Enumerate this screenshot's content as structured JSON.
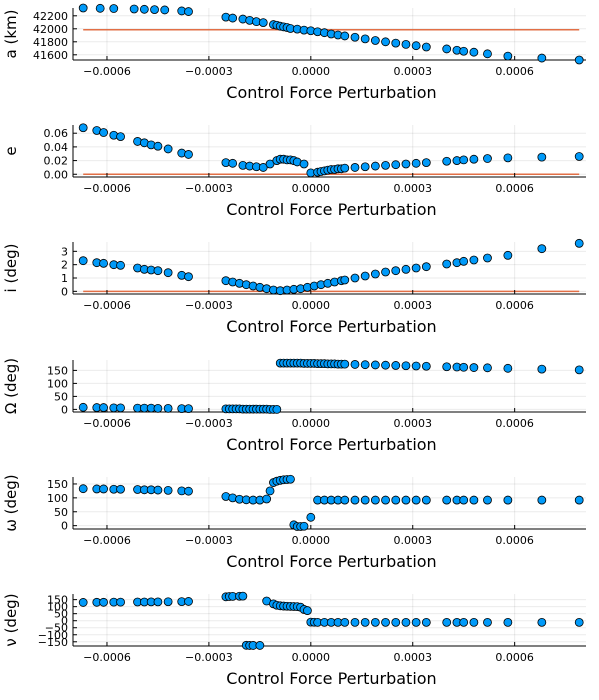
{
  "chart_data": [
    {
      "type": "scatter",
      "xlabel": "Control Force Perturbation",
      "ylabel": "a (km)",
      "xlim": [
        -0.0007,
        0.00081
      ],
      "xticks": [
        -0.0006,
        -0.0003,
        0.0,
        0.0003,
        0.0006
      ],
      "xticklabels": [
        "−0.0006",
        "−0.0003",
        "0.0000",
        "0.0003",
        "0.0006"
      ],
      "ylim": [
        41520,
        42320
      ],
      "yticks": [
        41600,
        41800,
        42000,
        42200
      ],
      "yticklabels": [
        "41600",
        "41800",
        "42000",
        "42200"
      ],
      "reference_line": 41985,
      "grid": true,
      "legend": "none",
      "x": [
        -0.00067,
        -0.00062,
        -0.00058,
        -0.00052,
        -0.00049,
        -0.00046,
        -0.00043,
        -0.00038,
        -0.00036,
        -0.00025,
        -0.00023,
        -0.0002,
        -0.00018,
        -0.00016,
        -0.00014,
        -0.00011,
        -0.0001,
        -9e-05,
        -8e-05,
        -7e-05,
        -6e-05,
        -4e-05,
        -2e-05,
        0.0,
        2e-05,
        4e-05,
        6e-05,
        8e-05,
        0.0001,
        0.00013,
        0.00016,
        0.00019,
        0.00022,
        0.00025,
        0.00028,
        0.00031,
        0.00034,
        0.0004,
        0.00043,
        0.00045,
        0.00048,
        0.00052,
        0.00058,
        0.00068,
        0.00079
      ],
      "y": [
        42320,
        42315,
        42312,
        42305,
        42300,
        42295,
        42290,
        42275,
        42265,
        42180,
        42165,
        42150,
        42130,
        42110,
        42095,
        42065,
        42055,
        42040,
        42030,
        42020,
        42005,
        41995,
        41980,
        41970,
        41955,
        41940,
        41920,
        41905,
        41890,
        41870,
        41845,
        41820,
        41800,
        41780,
        41760,
        41740,
        41720,
        41690,
        41670,
        41655,
        41640,
        41615,
        41580,
        41550,
        41520
      ]
    },
    {
      "type": "scatter",
      "xlabel": "Control Force Perturbation",
      "ylabel": "e",
      "xlim": [
        -0.0007,
        0.00081
      ],
      "xticks": [
        -0.0006,
        -0.0003,
        0.0,
        0.0003,
        0.0006
      ],
      "xticklabels": [
        "−0.0006",
        "−0.0003",
        "0.0000",
        "0.0003",
        "0.0006"
      ],
      "ylim": [
        -0.004,
        0.072
      ],
      "yticks": [
        0.0,
        0.02,
        0.04,
        0.06
      ],
      "yticklabels": [
        "0.00",
        "0.02",
        "0.04",
        "0.06"
      ],
      "reference_line": 0.0,
      "grid": true,
      "legend": "none",
      "x": [
        -0.00067,
        -0.00063,
        -0.00061,
        -0.00058,
        -0.00056,
        -0.00051,
        -0.00049,
        -0.00047,
        -0.00045,
        -0.00042,
        -0.00038,
        -0.00036,
        -0.00025,
        -0.00023,
        -0.0002,
        -0.00018,
        -0.00016,
        -0.00014,
        -0.00012,
        -0.0001,
        -9e-05,
        -8e-05,
        -7e-05,
        -6e-05,
        -5e-05,
        -4e-05,
        -2e-05,
        0.0,
        2e-05,
        3e-05,
        4e-05,
        5e-05,
        6e-05,
        7e-05,
        8e-05,
        9e-05,
        0.0001,
        0.00013,
        0.00016,
        0.00019,
        0.00022,
        0.00025,
        0.00028,
        0.00031,
        0.00034,
        0.0004,
        0.00043,
        0.00045,
        0.00048,
        0.00052,
        0.00058,
        0.00068,
        0.00079
      ],
      "y": [
        0.068,
        0.064,
        0.061,
        0.057,
        0.055,
        0.048,
        0.046,
        0.043,
        0.041,
        0.037,
        0.031,
        0.029,
        0.017,
        0.016,
        0.013,
        0.012,
        0.011,
        0.01,
        0.015,
        0.02,
        0.022,
        0.022,
        0.021,
        0.021,
        0.02,
        0.018,
        0.015,
        0.002,
        0.003,
        0.004,
        0.005,
        0.006,
        0.007,
        0.007,
        0.008,
        0.008,
        0.009,
        0.01,
        0.011,
        0.012,
        0.013,
        0.014,
        0.015,
        0.016,
        0.017,
        0.019,
        0.02,
        0.021,
        0.022,
        0.023,
        0.024,
        0.025,
        0.026
      ]
    },
    {
      "type": "scatter",
      "xlabel": "Control Force Perturbation",
      "ylabel": "i (deg)",
      "xlim": [
        -0.0007,
        0.00081
      ],
      "xticks": [
        -0.0006,
        -0.0003,
        0.0,
        0.0003,
        0.0006
      ],
      "xticklabels": [
        "−0.0006",
        "−0.0003",
        "0.0000",
        "0.0003",
        "0.0006"
      ],
      "ylim": [
        -0.2,
        3.7
      ],
      "yticks": [
        0,
        1,
        2,
        3
      ],
      "yticklabels": [
        "0",
        "1",
        "2",
        "3"
      ],
      "reference_line": 0.0,
      "grid": true,
      "legend": "none",
      "x": [
        -0.00067,
        -0.00063,
        -0.00061,
        -0.00058,
        -0.00056,
        -0.00051,
        -0.00049,
        -0.00047,
        -0.00045,
        -0.00042,
        -0.00038,
        -0.00036,
        -0.00025,
        -0.00023,
        -0.00021,
        -0.00019,
        -0.00017,
        -0.00015,
        -0.00013,
        -0.00011,
        -9e-05,
        -7e-05,
        -5e-05,
        -3e-05,
        -1e-05,
        1e-05,
        3e-05,
        5e-05,
        7e-05,
        9e-05,
        0.0001,
        0.00013,
        0.00016,
        0.00019,
        0.00022,
        0.00025,
        0.00028,
        0.00031,
        0.00034,
        0.0004,
        0.00043,
        0.00045,
        0.00048,
        0.00052,
        0.00058,
        0.00068,
        0.00079
      ],
      "y": [
        2.3,
        2.15,
        2.1,
        2.0,
        1.95,
        1.75,
        1.65,
        1.6,
        1.55,
        1.4,
        1.2,
        1.1,
        0.8,
        0.7,
        0.6,
        0.5,
        0.4,
        0.3,
        0.2,
        0.1,
        0.05,
        0.1,
        0.15,
        0.2,
        0.3,
        0.4,
        0.5,
        0.6,
        0.7,
        0.8,
        0.85,
        1.0,
        1.15,
        1.3,
        1.45,
        1.55,
        1.65,
        1.75,
        1.85,
        2.05,
        2.15,
        2.25,
        2.35,
        2.5,
        2.7,
        3.2,
        3.6
      ]
    },
    {
      "type": "scatter",
      "xlabel": "Control Force Perturbation",
      "ylabel": "Ω (deg)",
      "xlim": [
        -0.0007,
        0.00081
      ],
      "xticks": [
        -0.0006,
        -0.0003,
        0.0,
        0.0003,
        0.0006
      ],
      "xticklabels": [
        "−0.0006",
        "−0.0003",
        "0.0000",
        "0.0003",
        "0.0006"
      ],
      "ylim": [
        -10,
        190
      ],
      "yticks": [
        0,
        50,
        100,
        150
      ],
      "yticklabels": [
        "0",
        "50",
        "100",
        "150"
      ],
      "reference_line": null,
      "grid": true,
      "legend": "none",
      "x": [
        -0.00067,
        -0.00063,
        -0.00061,
        -0.00058,
        -0.00056,
        -0.00051,
        -0.00049,
        -0.00047,
        -0.00045,
        -0.00042,
        -0.00038,
        -0.00036,
        -0.00025,
        -0.00024,
        -0.00023,
        -0.00022,
        -0.00021,
        -0.0002,
        -0.00019,
        -0.00018,
        -0.00017,
        -0.00016,
        -0.00015,
        -0.00014,
        -0.00013,
        -0.00012,
        -0.00011,
        -0.0001,
        -9e-05,
        -8e-05,
        -7e-05,
        -6e-05,
        -5e-05,
        -4e-05,
        -3e-05,
        -2e-05,
        -1e-05,
        0.0,
        1e-05,
        2e-05,
        3e-05,
        4e-05,
        5e-05,
        6e-05,
        7e-05,
        8e-05,
        9e-05,
        0.0001,
        0.00013,
        0.00016,
        0.00019,
        0.00022,
        0.00025,
        0.00028,
        0.00031,
        0.00034,
        0.0004,
        0.00043,
        0.00045,
        0.00048,
        0.00052,
        0.00058,
        0.00068,
        0.00079
      ],
      "y": [
        8,
        7,
        7,
        6,
        6,
        5,
        5,
        5,
        4,
        4,
        3,
        3,
        2,
        2,
        2,
        2,
        2,
        1,
        1,
        1,
        1,
        1,
        1,
        1,
        1,
        0,
        0,
        0,
        178,
        178,
        178,
        178,
        178,
        178,
        178,
        177,
        177,
        177,
        177,
        176,
        176,
        176,
        175,
        175,
        175,
        174,
        174,
        174,
        173,
        172,
        171,
        170,
        169,
        168,
        167,
        166,
        164,
        163,
        162,
        161,
        160,
        158,
        155,
        152
      ]
    },
    {
      "type": "scatter",
      "xlabel": "Control Force Perturbation",
      "ylabel": "ω (deg)",
      "xlim": [
        -0.0007,
        0.00081
      ],
      "xticks": [
        -0.0006,
        -0.0003,
        0.0,
        0.0003,
        0.0006
      ],
      "xticklabels": [
        "−0.0006",
        "−0.0003",
        "0.0000",
        "0.0003",
        "0.0006"
      ],
      "ylim": [
        -12,
        175
      ],
      "yticks": [
        0,
        50,
        100,
        150
      ],
      "yticklabels": [
        "0",
        "50",
        "100",
        "150"
      ],
      "reference_line": null,
      "grid": true,
      "legend": "none",
      "x": [
        -0.00067,
        -0.00063,
        -0.00061,
        -0.00058,
        -0.00056,
        -0.00051,
        -0.00049,
        -0.00047,
        -0.00045,
        -0.00042,
        -0.00038,
        -0.00036,
        -0.00025,
        -0.00023,
        -0.00021,
        -0.00019,
        -0.00017,
        -0.00015,
        -0.00013,
        -0.00012,
        -0.00011,
        -0.0001,
        -9e-05,
        -8e-05,
        -7e-05,
        -6e-05,
        -5e-05,
        -4e-05,
        -3e-05,
        -2e-05,
        0.0,
        2e-05,
        4e-05,
        6e-05,
        8e-05,
        0.0001,
        0.00013,
        0.00016,
        0.00019,
        0.00022,
        0.00025,
        0.00028,
        0.00031,
        0.00034,
        0.0004,
        0.00043,
        0.00045,
        0.00048,
        0.00052,
        0.00058,
        0.00068,
        0.00079
      ],
      "y": [
        133,
        132,
        132,
        131,
        131,
        130,
        129,
        129,
        128,
        127,
        125,
        124,
        105,
        100,
        95,
        93,
        92,
        92,
        96,
        125,
        155,
        160,
        163,
        165,
        166,
        167,
        3,
        -3,
        -3,
        -2,
        30,
        92,
        92,
        92,
        92,
        92,
        92,
        92,
        92,
        92,
        92,
        92,
        92,
        92,
        92,
        92,
        92,
        92,
        92,
        92,
        92,
        92
      ]
    },
    {
      "type": "scatter",
      "xlabel": "Control Force Perturbation",
      "ylabel": "ν (deg)",
      "xlim": [
        -0.0007,
        0.00081
      ],
      "xticks": [
        -0.0006,
        -0.0003,
        0.0,
        0.0003,
        0.0006
      ],
      "xticklabels": [
        "−0.0006",
        "−0.0003",
        "0.0000",
        "0.0003",
        "0.0006"
      ],
      "ylim": [
        -180,
        190
      ],
      "yticks": [
        -150,
        -100,
        -50,
        0,
        50,
        100,
        150
      ],
      "yticklabels": [
        "−150",
        "−100",
        "−50",
        "0",
        "50",
        "100",
        "150"
      ],
      "reference_line": null,
      "grid": true,
      "legend": "none",
      "x": [
        -0.00067,
        -0.00063,
        -0.00061,
        -0.00058,
        -0.00056,
        -0.00051,
        -0.00049,
        -0.00047,
        -0.00045,
        -0.00042,
        -0.00038,
        -0.00036,
        -0.00025,
        -0.00024,
        -0.00023,
        -0.00021,
        -0.0002,
        -0.00019,
        -0.00018,
        -0.00017,
        -0.00015,
        -0.00013,
        -0.00011,
        -0.0001,
        -9e-05,
        -8e-05,
        -7e-05,
        -6e-05,
        -5e-05,
        -4e-05,
        -3e-05,
        -2e-05,
        -1e-05,
        0.0,
        1e-05,
        2e-05,
        4e-05,
        6e-05,
        8e-05,
        0.0001,
        0.00013,
        0.00016,
        0.00019,
        0.00022,
        0.00025,
        0.00028,
        0.00031,
        0.00034,
        0.0004,
        0.00043,
        0.00045,
        0.00048,
        0.00052,
        0.00058,
        0.00068,
        0.00079
      ],
      "y": [
        130,
        131,
        131,
        132,
        132,
        133,
        133,
        134,
        134,
        135,
        136,
        137,
        170,
        172,
        173,
        174,
        175,
        -175,
        -176,
        -176,
        -176,
        140,
        120,
        110,
        106,
        104,
        103,
        102,
        101,
        100,
        96,
        80,
        72,
        -10,
        -11,
        -12,
        -12,
        -12,
        -12,
        -12,
        -12,
        -12,
        -12,
        -12,
        -12,
        -12,
        -12,
        -12,
        -12,
        -12,
        -12,
        -12,
        -12,
        -12,
        -12,
        -12
      ]
    }
  ]
}
